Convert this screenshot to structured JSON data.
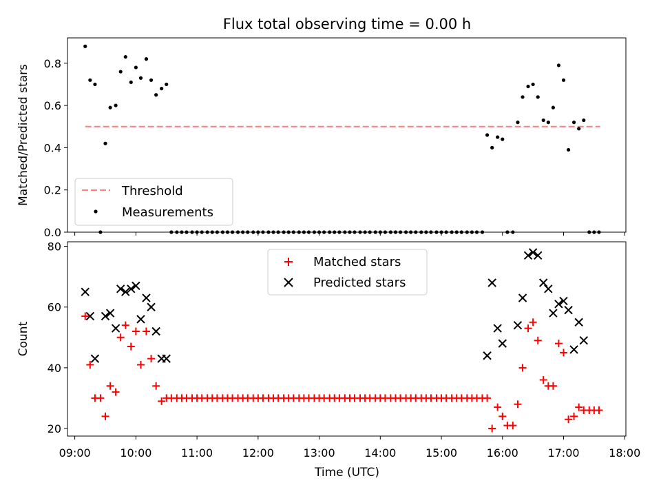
{
  "title": "Flux total observing time = 0.00 h",
  "colors": {
    "threshold": "#ff7f7f",
    "measurement": "#000000",
    "matched": "#ff0000",
    "predicted": "#000000"
  },
  "chart_data": [
    {
      "type": "scatter",
      "ylabel": "Matched/Predicted stars",
      "ylim": [
        0,
        0.92
      ],
      "yticks": [
        0.0,
        0.2,
        0.4,
        0.6,
        0.8
      ],
      "ytick_labels": [
        "0.0",
        "0.2",
        "0.4",
        "0.6",
        "0.8"
      ],
      "xlim": [
        8.88,
        18.02
      ],
      "threshold": {
        "label": "Threshold",
        "value": 0.5,
        "x": [
          9.17,
          17.6
        ]
      },
      "legend": [
        "Threshold",
        "Measurements"
      ],
      "measurements": {
        "label": "Measurements",
        "x": [
          9.17,
          9.25,
          9.33,
          9.42,
          9.5,
          9.58,
          9.67,
          9.75,
          9.83,
          9.92,
          10.0,
          10.08,
          10.17,
          10.25,
          10.33,
          10.42,
          10.5,
          10.58,
          10.67,
          10.75,
          10.83,
          10.92,
          11.0,
          11.08,
          11.17,
          11.25,
          11.33,
          11.42,
          11.5,
          11.58,
          11.67,
          11.75,
          11.83,
          11.92,
          12.0,
          12.08,
          12.17,
          12.25,
          12.33,
          12.42,
          12.5,
          12.58,
          12.67,
          12.75,
          12.83,
          12.92,
          13.0,
          13.08,
          13.17,
          13.25,
          13.33,
          13.42,
          13.5,
          13.58,
          13.67,
          13.75,
          13.83,
          13.92,
          14.0,
          14.08,
          14.17,
          14.25,
          14.33,
          14.42,
          14.5,
          14.58,
          14.67,
          14.75,
          14.83,
          14.92,
          15.0,
          15.08,
          15.17,
          15.25,
          15.33,
          15.42,
          15.5,
          15.58,
          15.67,
          15.75,
          15.83,
          15.92,
          16.0,
          16.08,
          16.17,
          16.25,
          16.33,
          16.42,
          16.5,
          16.58,
          16.67,
          16.75,
          16.83,
          16.92,
          17.0,
          17.08,
          17.17,
          17.25,
          17.33,
          17.42,
          17.5,
          17.58
        ],
        "y": [
          0.88,
          0.72,
          0.7,
          0.0,
          0.42,
          0.59,
          0.6,
          0.76,
          0.83,
          0.71,
          0.78,
          0.73,
          0.82,
          0.72,
          0.65,
          0.68,
          0.7,
          0,
          0,
          0,
          0,
          0,
          0,
          0,
          0,
          0,
          0,
          0,
          0,
          0,
          0,
          0,
          0,
          0,
          0,
          0,
          0,
          0,
          0,
          0,
          0,
          0,
          0,
          0,
          0,
          0,
          0,
          0,
          0,
          0,
          0,
          0,
          0,
          0,
          0,
          0,
          0,
          0,
          0,
          0,
          0,
          0,
          0,
          0,
          0,
          0,
          0,
          0,
          0,
          0,
          0,
          0,
          0,
          0,
          0,
          0,
          0,
          0,
          0,
          0.46,
          0.4,
          0.45,
          0.44,
          0.0,
          0.0,
          0.52,
          0.64,
          0.69,
          0.7,
          0.64,
          0.53,
          0.52,
          0.59,
          0.79,
          0.72,
          0.39,
          0.52,
          0.49,
          0.53,
          0.0,
          0.0,
          0.0
        ]
      }
    },
    {
      "type": "scatter",
      "title": "",
      "ylabel": "Count",
      "xlabel": "Time (UTC)",
      "ylim": [
        17.5,
        81.5
      ],
      "xlim": [
        8.88,
        18.02
      ],
      "yticks": [
        20,
        40,
        60,
        80
      ],
      "ytick_labels": [
        "20",
        "40",
        "60",
        "80"
      ],
      "xticks": [
        9,
        10,
        11,
        12,
        13,
        14,
        15,
        16,
        17,
        18
      ],
      "xtick_labels": [
        "09:00",
        "10:00",
        "11:00",
        "12:00",
        "13:00",
        "14:00",
        "15:00",
        "16:00",
        "17:00",
        "18:00"
      ],
      "legend": [
        "Matched stars",
        "Predicted stars"
      ],
      "series": [
        {
          "name": "Matched stars",
          "marker": "plus",
          "x": [
            9.17,
            9.25,
            9.33,
            9.42,
            9.5,
            9.58,
            9.67,
            9.75,
            9.83,
            9.92,
            10.0,
            10.08,
            10.17,
            10.25,
            10.33,
            10.42,
            10.5,
            10.58,
            10.67,
            10.75,
            10.83,
            10.92,
            11.0,
            11.08,
            11.17,
            11.25,
            11.33,
            11.42,
            11.5,
            11.58,
            11.67,
            11.75,
            11.83,
            11.92,
            12.0,
            12.08,
            12.17,
            12.25,
            12.33,
            12.42,
            12.5,
            12.58,
            12.67,
            12.75,
            12.83,
            12.92,
            13.0,
            13.08,
            13.17,
            13.25,
            13.33,
            13.42,
            13.5,
            13.58,
            13.67,
            13.75,
            13.83,
            13.92,
            14.0,
            14.08,
            14.17,
            14.25,
            14.33,
            14.42,
            14.5,
            14.58,
            14.67,
            14.75,
            14.83,
            14.92,
            15.0,
            15.08,
            15.17,
            15.25,
            15.33,
            15.42,
            15.5,
            15.58,
            15.67,
            15.75,
            15.83,
            15.92,
            16.0,
            16.08,
            16.17,
            16.25,
            16.33,
            16.42,
            16.5,
            16.58,
            16.67,
            16.75,
            16.83,
            16.92,
            17.0,
            17.08,
            17.17,
            17.25,
            17.33,
            17.42,
            17.5,
            17.58
          ],
          "values": [
            57,
            41,
            30,
            30,
            24,
            34,
            32,
            50,
            54,
            47,
            52,
            41,
            52,
            43,
            34,
            29,
            30,
            30,
            30,
            30,
            30,
            30,
            30,
            30,
            30,
            30,
            30,
            30,
            30,
            30,
            30,
            30,
            30,
            30,
            30,
            30,
            30,
            30,
            30,
            30,
            30,
            30,
            30,
            30,
            30,
            30,
            30,
            30,
            30,
            30,
            30,
            30,
            30,
            30,
            30,
            30,
            30,
            30,
            30,
            30,
            30,
            30,
            30,
            30,
            30,
            30,
            30,
            30,
            30,
            30,
            30,
            30,
            30,
            30,
            30,
            30,
            30,
            30,
            30,
            30,
            20,
            27,
            24,
            21,
            21,
            28,
            40,
            53,
            55,
            49,
            36,
            34,
            34,
            48,
            45,
            23,
            24,
            27,
            26,
            26,
            26,
            26
          ]
        },
        {
          "name": "Predicted stars",
          "marker": "x",
          "x": [
            9.17,
            9.25,
            9.33,
            9.5,
            9.58,
            9.67,
            9.75,
            9.83,
            9.92,
            10.0,
            10.08,
            10.17,
            10.25,
            10.33,
            10.42,
            10.5,
            15.75,
            15.83,
            15.92,
            16.0,
            16.25,
            16.33,
            16.42,
            16.5,
            16.58,
            16.67,
            16.75,
            16.83,
            16.92,
            17.0,
            17.08,
            17.17,
            17.25,
            17.33
          ],
          "values": [
            65,
            57,
            43,
            57,
            58,
            53,
            66,
            65,
            66,
            67,
            56,
            63,
            60,
            52,
            43,
            43,
            44,
            68,
            53,
            48,
            54,
            63,
            77,
            78,
            77,
            68,
            66,
            58,
            61,
            62,
            59,
            46,
            55,
            49
          ]
        }
      ]
    }
  ]
}
